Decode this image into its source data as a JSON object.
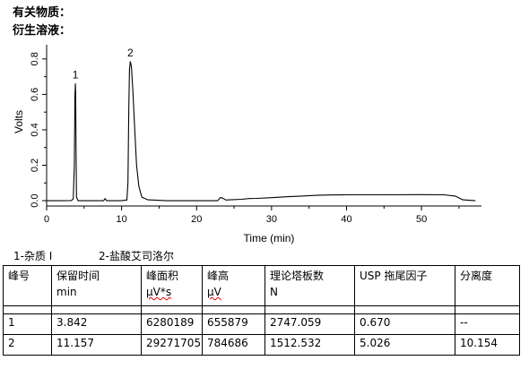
{
  "header": {
    "line1": "有关物质：",
    "line2": "衍生溶液："
  },
  "chart_data": {
    "type": "line",
    "xlabel": "Time (min)",
    "ylabel": "Volts",
    "xlim": [
      0,
      58
    ],
    "ylim": [
      -0.03,
      0.88
    ],
    "xticks": [
      0,
      10,
      20,
      30,
      40,
      50
    ],
    "yticks": [
      0.0,
      0.2,
      0.4,
      0.6,
      0.8
    ],
    "ytick_labels": [
      "0.0",
      "0.2",
      "0.4",
      "0.6",
      "0.8"
    ],
    "grid": false,
    "series": [
      {
        "x": [
          0,
          2,
          3.3,
          3.55,
          3.7,
          3.78,
          3.842,
          3.88,
          3.92,
          3.98,
          4.2,
          6,
          7.6,
          7.8,
          8.0,
          8.2,
          10,
          10.7,
          10.85,
          10.95,
          11.05,
          11.157,
          11.3,
          11.5,
          11.75,
          12.0,
          12.3,
          12.7,
          13.5,
          16,
          20,
          22.8,
          23.2,
          23.5,
          23.9,
          24.5,
          26,
          27,
          28,
          30,
          32,
          34,
          36,
          37.7,
          40,
          45,
          50,
          53,
          54.5,
          55.5,
          56.5,
          57.2
        ],
        "y": [
          0.0,
          0.0,
          0.001,
          0.01,
          0.2,
          0.6,
          0.66,
          0.6,
          0.3,
          0.02,
          0.0,
          0.0,
          0.0,
          0.012,
          0.0,
          0.0,
          0.0,
          0.004,
          0.1,
          0.5,
          0.74,
          0.785,
          0.76,
          0.62,
          0.4,
          0.2,
          0.08,
          0.02,
          0.005,
          0.0,
          0.0,
          0.0,
          0.018,
          0.014,
          0.004,
          0.005,
          0.008,
          0.012,
          0.013,
          0.017,
          0.022,
          0.026,
          0.03,
          0.032,
          0.033,
          0.033,
          0.034,
          0.033,
          0.026,
          0.005,
          0.002,
          0.0
        ]
      }
    ],
    "peak_labels": [
      {
        "text": "1",
        "x": 3.842,
        "y": 0.66
      },
      {
        "text": "2",
        "x": 11.157,
        "y": 0.785
      }
    ]
  },
  "legend": {
    "item1": "1-杂质 I",
    "item2": "2-盐酸艾司洛尔"
  },
  "table": {
    "headers": [
      {
        "title": "峰号",
        "unit": ""
      },
      {
        "title": "保留时间",
        "unit": "min"
      },
      {
        "title": "峰面积",
        "unit": "μV*s"
      },
      {
        "title": "峰高",
        "unit": "μV"
      },
      {
        "title": "理论塔板数",
        "unit": "N"
      },
      {
        "title": "USP 拖尾因子",
        "unit": ""
      },
      {
        "title": "分离度",
        "unit": ""
      }
    ],
    "rows": [
      [
        "1",
        "3.842",
        "6280189",
        "655879",
        "2747.059",
        "0.670",
        "--"
      ],
      [
        "2",
        "11.157",
        "29271705",
        "784686",
        "1512.532",
        "5.026",
        "10.154"
      ]
    ]
  }
}
